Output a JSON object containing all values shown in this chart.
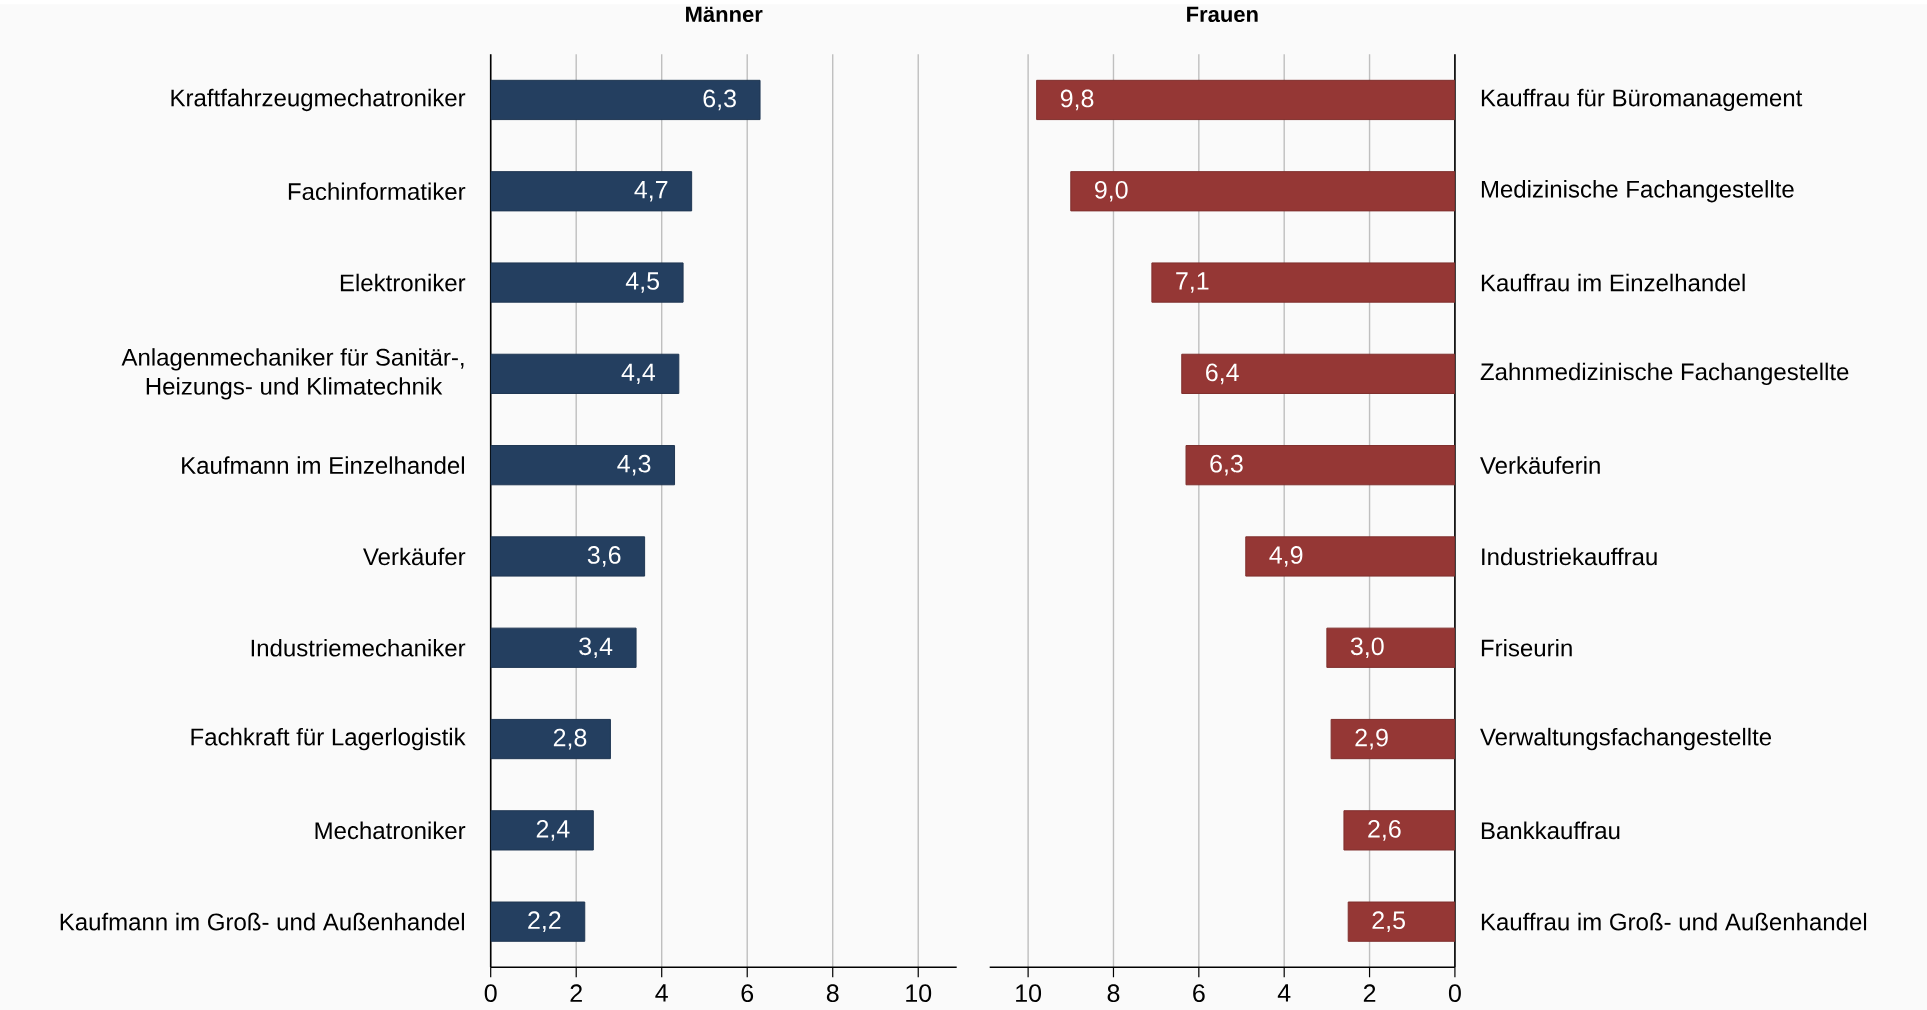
{
  "chart_data": [
    {
      "type": "bar",
      "orientation": "horizontal",
      "title": "Männer",
      "categories": [
        "Kraftfahrzeugmechatroniker",
        "Fachinformatiker",
        "Elektroniker",
        "Anlagenmechaniker für Sanitär-, Heizungs- und Klimatechnik",
        "Kaufmann im Einzelhandel",
        "Verkäufer",
        "Industriemechaniker",
        "Fachkraft für Lagerlogistik",
        "Mechatroniker",
        "Kaufmann im Groß- und Außenhandel"
      ],
      "values": [
        6.3,
        4.7,
        4.5,
        4.4,
        4.3,
        3.6,
        3.4,
        2.8,
        2.4,
        2.2
      ],
      "value_labels": [
        "6,3",
        "4,7",
        "4,5",
        "4,4",
        "4,3",
        "3,6",
        "3,4",
        "2,8",
        "2,4",
        "2,2"
      ],
      "color": "#243f60",
      "xlim": [
        0,
        10.9
      ],
      "xticks": [
        0,
        2,
        4,
        6,
        8,
        10
      ],
      "grid": "x"
    },
    {
      "type": "bar",
      "orientation": "horizontal",
      "title": "Frauen",
      "categories": [
        "Kauffrau für Büromanagement",
        "Medizinische Fachangestellte",
        "Kauffrau im Einzelhandel",
        "Zahnmedizinische Fachangestellte",
        "Verkäuferin",
        "Industriekauffrau",
        "Friseurin",
        "Verwaltungsfachangestellte",
        "Bankkauffrau",
        "Kauffrau im Groß- und Außenhandel"
      ],
      "values": [
        9.8,
        9.0,
        7.1,
        6.4,
        6.3,
        4.9,
        3.0,
        2.9,
        2.6,
        2.5
      ],
      "value_labels": [
        "9,8",
        "9,0",
        "7,1",
        "6,4",
        "6,3",
        "4,9",
        "3,0",
        "2,9",
        "2,6",
        "2,5"
      ],
      "color": "#953735",
      "xlim": [
        10.9,
        0
      ],
      "xticks": [
        10,
        8,
        6,
        4,
        2,
        0
      ],
      "grid": "x"
    }
  ]
}
